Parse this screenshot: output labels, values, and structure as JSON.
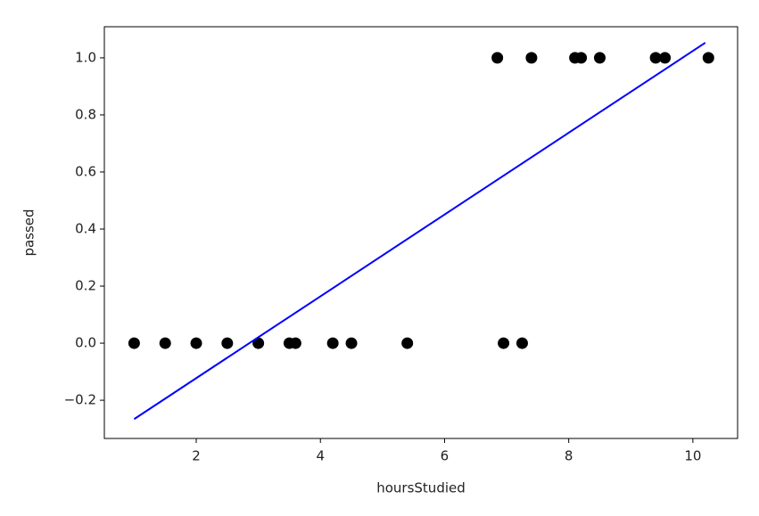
{
  "chart_data": {
    "type": "scatter",
    "xlabel": "hoursStudied",
    "ylabel": "passed",
    "xlim": [
      0.52,
      10.72
    ],
    "ylim": [
      -0.334,
      1.109
    ],
    "xticks": [
      2,
      4,
      6,
      8,
      10
    ],
    "yticks": [
      {
        "value": -0.2,
        "label": "−0.2"
      },
      {
        "value": 0.0,
        "label": "0.0"
      },
      {
        "value": 0.2,
        "label": "0.2"
      },
      {
        "value": 0.4,
        "label": "0.4"
      },
      {
        "value": 0.6,
        "label": "0.6"
      },
      {
        "value": 0.8,
        "label": "0.8"
      },
      {
        "value": 1.0,
        "label": "1.0"
      }
    ],
    "series": [
      {
        "type": "scatter",
        "color": "#000000",
        "x": [
          1.0,
          1.5,
          2.0,
          2.5,
          3.0,
          3.5,
          3.6,
          4.2,
          4.5,
          5.4,
          6.95,
          7.25,
          6.85,
          7.4,
          8.1,
          8.2,
          8.5,
          9.4,
          9.55,
          10.25
        ],
        "values": [
          0,
          0,
          0,
          0,
          0,
          0,
          0,
          0,
          0,
          0,
          0,
          0,
          1,
          1,
          1,
          1,
          1,
          1,
          1,
          1
        ]
      },
      {
        "type": "line",
        "color": "#0000ff",
        "x": [
          1.0,
          10.2
        ],
        "values": [
          -0.266,
          1.053
        ]
      }
    ]
  }
}
